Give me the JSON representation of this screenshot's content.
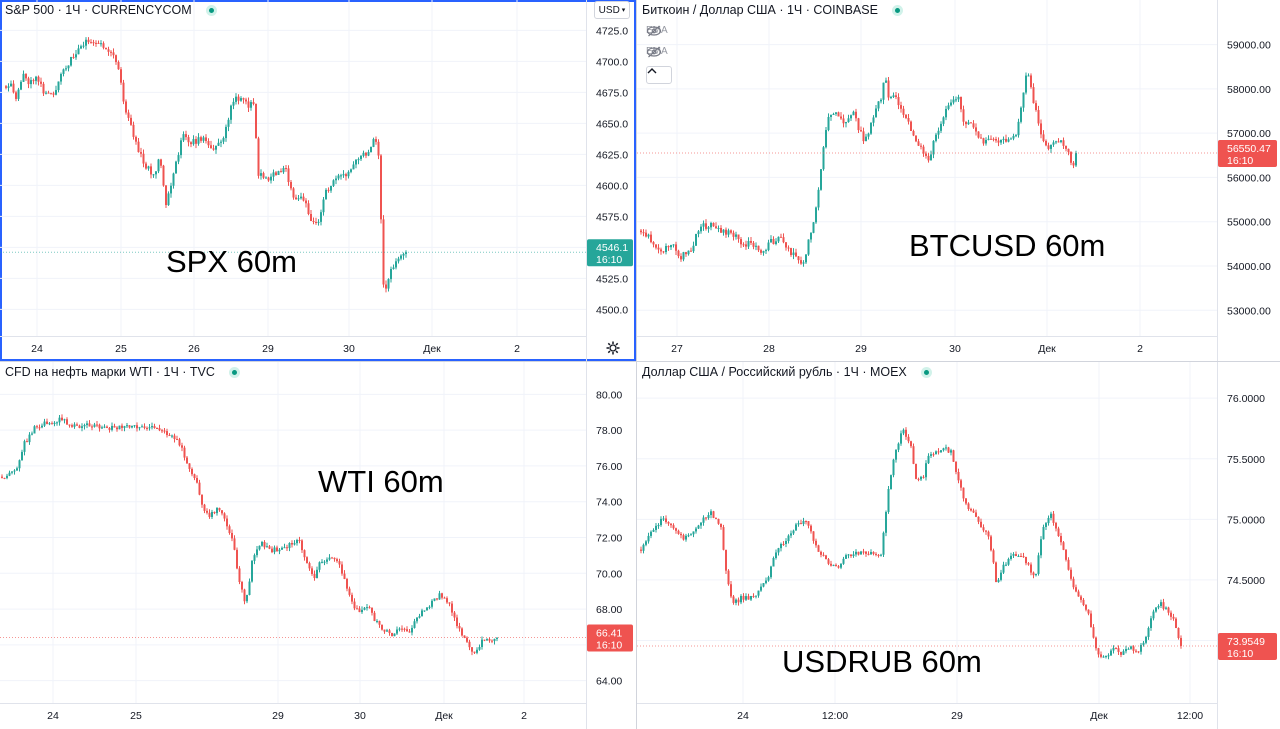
{
  "panes": [
    {
      "id": "spx",
      "header": "S&P 500 · 1Ч · CURRENCYCOM",
      "label": "SPX 60m",
      "currency_button": "USD",
      "price_tag": {
        "value": "4546.1",
        "time": "16:10",
        "color": "#26a69a"
      }
    },
    {
      "id": "btc",
      "header": "Биткоин / Доллар США · 1Ч · COINBASE",
      "label": "BTCUSD 60m",
      "indicators": [
        "EMA",
        "EMA"
      ],
      "price_tag": {
        "value": "56550.47",
        "time": "16:10",
        "color": "#ef5350"
      }
    },
    {
      "id": "wti",
      "header": "CFD на нефть марки WTI · 1Ч · TVC",
      "label": "WTI 60m",
      "price_tag": {
        "value": "66.41",
        "time": "16:10",
        "color": "#ef5350"
      }
    },
    {
      "id": "usdrub",
      "header": "Доллар США / Российский рубль · 1Ч · MOEX",
      "label": "USDRUB 60m",
      "price_tag": {
        "value": "73.9549",
        "time": "16:10",
        "color": "#ef5350"
      }
    }
  ],
  "colors": {
    "up": "#26a69a",
    "down": "#ef5350",
    "grid": "#f0f3fa",
    "axis_text": "#131722",
    "active_border": "#2962ff"
  },
  "icons": [
    "live-status-dot",
    "eye-crossed-icon",
    "chevron-up-icon",
    "gear-icon",
    "dropdown-caret"
  ],
  "chart_data": [
    {
      "type": "candlestick",
      "title": "S&P 500 · 1Ч · CURRENCYCOM",
      "y_ticks": [
        4500,
        4525,
        4550,
        4575,
        4600,
        4625,
        4650,
        4675,
        4700,
        4725
      ],
      "y_tick_labels": [
        "4500.0",
        "4525.0",
        "4550.0",
        "4575.0",
        "4600.0",
        "4625.0",
        "4650.0",
        "4675.0",
        "4700.0",
        "4725.0"
      ],
      "ylim": [
        4485,
        4735
      ],
      "x_ticks": [
        "24",
        "25",
        "26",
        "29",
        "30",
        "Дек",
        "2"
      ],
      "path": [
        [
          0,
          4680
        ],
        [
          6,
          4685
        ],
        [
          9,
          4668
        ],
        [
          18,
          4690
        ],
        [
          24,
          4682
        ],
        [
          30,
          4690
        ],
        [
          38,
          4675
        ],
        [
          48,
          4672
        ],
        [
          54,
          4690
        ],
        [
          64,
          4700
        ],
        [
          73,
          4710
        ],
        [
          84,
          4718
        ],
        [
          92,
          4714
        ],
        [
          100,
          4712
        ],
        [
          108,
          4705
        ],
        [
          114,
          4690
        ],
        [
          118,
          4665
        ],
        [
          124,
          4650
        ],
        [
          132,
          4630
        ],
        [
          140,
          4615
        ],
        [
          148,
          4608
        ],
        [
          154,
          4625
        ],
        [
          160,
          4585
        ],
        [
          168,
          4610
        ],
        [
          176,
          4640
        ],
        [
          186,
          4635
        ],
        [
          198,
          4638
        ],
        [
          208,
          4628
        ],
        [
          218,
          4640
        ],
        [
          224,
          4660
        ],
        [
          230,
          4672
        ],
        [
          242,
          4665
        ],
        [
          248,
          4665
        ],
        [
          252,
          4610
        ],
        [
          260,
          4605
        ],
        [
          270,
          4610
        ],
        [
          280,
          4612
        ],
        [
          288,
          4590
        ],
        [
          298,
          4590
        ],
        [
          304,
          4570
        ],
        [
          312,
          4570
        ],
        [
          320,
          4595
        ],
        [
          330,
          4605
        ],
        [
          340,
          4608
        ],
        [
          348,
          4620
        ],
        [
          356,
          4625
        ],
        [
          364,
          4628
        ],
        [
          368,
          4640
        ],
        [
          372,
          4635
        ],
        [
          376,
          4550
        ],
        [
          378,
          4512
        ],
        [
          384,
          4530
        ],
        [
          392,
          4540
        ],
        [
          400,
          4546.1
        ]
      ],
      "last_value": 4546.1
    },
    {
      "type": "candlestick",
      "title": "Биткоин / Доллар США · 1Ч · COINBASE",
      "y_ticks": [
        53000,
        54000,
        55000,
        56000,
        57000,
        58000,
        59000
      ],
      "y_tick_labels": [
        "53000.00",
        "54000.00",
        "55000.00",
        "56000.00",
        "57000.00",
        "58000.00",
        "59000.00"
      ],
      "ylim": [
        52600,
        59600
      ],
      "x_ticks": [
        "27",
        "28",
        "29",
        "30",
        "Дек",
        "2"
      ],
      "path": [
        [
          0,
          54800
        ],
        [
          10,
          54600
        ],
        [
          20,
          54300
        ],
        [
          30,
          54500
        ],
        [
          40,
          54200
        ],
        [
          50,
          54400
        ],
        [
          60,
          54900
        ],
        [
          72,
          54900
        ],
        [
          80,
          54750
        ],
        [
          90,
          54800
        ],
        [
          100,
          54500
        ],
        [
          110,
          54500
        ],
        [
          120,
          54300
        ],
        [
          130,
          54550
        ],
        [
          140,
          54600
        ],
        [
          148,
          54350
        ],
        [
          156,
          54150
        ],
        [
          162,
          54000
        ],
        [
          168,
          54600
        ],
        [
          174,
          55200
        ],
        [
          180,
          56200
        ],
        [
          186,
          57300
        ],
        [
          192,
          57500
        ],
        [
          198,
          57300
        ],
        [
          205,
          57200
        ],
        [
          212,
          57500
        ],
        [
          218,
          57100
        ],
        [
          224,
          56800
        ],
        [
          230,
          57200
        ],
        [
          236,
          57600
        ],
        [
          240,
          57800
        ],
        [
          244,
          58300
        ],
        [
          248,
          57800
        ],
        [
          254,
          57800
        ],
        [
          260,
          57600
        ],
        [
          266,
          57300
        ],
        [
          272,
          56900
        ],
        [
          280,
          56700
        ],
        [
          288,
          56400
        ],
        [
          294,
          56900
        ],
        [
          300,
          57200
        ],
        [
          306,
          57600
        ],
        [
          312,
          57700
        ],
        [
          318,
          57900
        ],
        [
          322,
          57300
        ],
        [
          330,
          57200
        ],
        [
          336,
          57000
        ],
        [
          344,
          56800
        ],
        [
          352,
          56900
        ],
        [
          360,
          56800
        ],
        [
          368,
          56900
        ],
        [
          376,
          57000
        ],
        [
          382,
          57800
        ],
        [
          386,
          58400
        ],
        [
          392,
          57800
        ],
        [
          398,
          57100
        ],
        [
          404,
          56700
        ],
        [
          410,
          56700
        ],
        [
          416,
          56800
        ],
        [
          420,
          56900
        ],
        [
          426,
          56600
        ],
        [
          432,
          56300
        ],
        [
          436,
          56550.47
        ]
      ],
      "last_value": 56550.47
    },
    {
      "type": "candlestick",
      "title": "CFD на нефть марки WTI · 1Ч · TVC",
      "y_ticks": [
        64,
        66,
        68,
        70,
        72,
        74,
        76,
        78,
        80
      ],
      "y_tick_labels": [
        "64.00",
        "66.00",
        "68.00",
        "70.00",
        "72.00",
        "74.00",
        "76.00",
        "78.00",
        "80.00"
      ],
      "ylim": [
        63.2,
        80.8
      ],
      "x_ticks": [
        "24",
        "25",
        "29",
        "30",
        "Дек",
        "2"
      ],
      "path": [
        [
          0,
          75.4
        ],
        [
          14,
          75.7
        ],
        [
          22,
          77.2
        ],
        [
          34,
          78.2
        ],
        [
          46,
          78.4
        ],
        [
          60,
          78.6
        ],
        [
          70,
          78.2
        ],
        [
          86,
          78.3
        ],
        [
          100,
          78.1
        ],
        [
          120,
          78.2
        ],
        [
          138,
          78.1
        ],
        [
          150,
          78.3
        ],
        [
          160,
          78.0
        ],
        [
          170,
          77.6
        ],
        [
          178,
          77.2
        ],
        [
          186,
          76.0
        ],
        [
          194,
          75.2
        ],
        [
          200,
          73.8
        ],
        [
          208,
          73.2
        ],
        [
          214,
          73.6
        ],
        [
          220,
          73.4
        ],
        [
          226,
          72.6
        ],
        [
          232,
          71.5
        ],
        [
          238,
          69.3
        ],
        [
          244,
          68.3
        ],
        [
          250,
          70.6
        ],
        [
          258,
          71.7
        ],
        [
          268,
          71.3
        ],
        [
          278,
          71.3
        ],
        [
          290,
          71.7
        ],
        [
          296,
          72.0
        ],
        [
          300,
          71.3
        ],
        [
          306,
          70.4
        ],
        [
          312,
          69.6
        ],
        [
          318,
          70.6
        ],
        [
          328,
          70.9
        ],
        [
          336,
          70.7
        ],
        [
          344,
          69.4
        ],
        [
          350,
          68.3
        ],
        [
          358,
          67.8
        ],
        [
          366,
          68.1
        ],
        [
          374,
          67.3
        ],
        [
          382,
          66.8
        ],
        [
          390,
          66.5
        ],
        [
          398,
          67.0
        ],
        [
          406,
          66.6
        ],
        [
          412,
          67.3
        ],
        [
          420,
          67.8
        ],
        [
          430,
          68.4
        ],
        [
          438,
          68.8
        ],
        [
          446,
          68.4
        ],
        [
          452,
          67.5
        ],
        [
          458,
          66.8
        ],
        [
          464,
          66.2
        ],
        [
          472,
          65.6
        ],
        [
          480,
          66.2
        ],
        [
          488,
          66.2
        ],
        [
          496,
          66.41
        ]
      ],
      "last_value": 66.41
    },
    {
      "type": "candlestick",
      "title": "Доллар США / Российский рубль · 1Ч · MOEX",
      "y_ticks": [
        74.0,
        74.5,
        75.0,
        75.5,
        76.0
      ],
      "y_tick_labels": [
        "74.0000",
        "74.5000",
        "75.0000",
        "75.5000",
        "76.0000"
      ],
      "ylim": [
        73.55,
        76.15
      ],
      "x_ticks": [
        "24",
        "12:00",
        "29",
        "Дек",
        "12:00"
      ],
      "path": [
        [
          0,
          74.75
        ],
        [
          10,
          74.9
        ],
        [
          22,
          75.0
        ],
        [
          32,
          74.95
        ],
        [
          42,
          74.85
        ],
        [
          52,
          74.9
        ],
        [
          62,
          75.0
        ],
        [
          70,
          75.05
        ],
        [
          80,
          74.95
        ],
        [
          86,
          74.5
        ],
        [
          92,
          74.3
        ],
        [
          100,
          74.35
        ],
        [
          110,
          74.35
        ],
        [
          118,
          74.4
        ],
        [
          126,
          74.5
        ],
        [
          136,
          74.75
        ],
        [
          146,
          74.85
        ],
        [
          156,
          74.95
        ],
        [
          166,
          75.0
        ],
        [
          176,
          74.75
        ],
        [
          186,
          74.65
        ],
        [
          196,
          74.6
        ],
        [
          206,
          74.7
        ],
        [
          216,
          74.72
        ],
        [
          228,
          74.72
        ],
        [
          240,
          74.7
        ],
        [
          248,
          75.3
        ],
        [
          254,
          75.55
        ],
        [
          262,
          75.75
        ],
        [
          270,
          75.6
        ],
        [
          276,
          75.3
        ],
        [
          282,
          75.35
        ],
        [
          288,
          75.55
        ],
        [
          296,
          75.55
        ],
        [
          304,
          75.6
        ],
        [
          310,
          75.55
        ],
        [
          318,
          75.3
        ],
        [
          326,
          75.1
        ],
        [
          334,
          75.05
        ],
        [
          340,
          74.95
        ],
        [
          348,
          74.85
        ],
        [
          356,
          74.45
        ],
        [
          362,
          74.6
        ],
        [
          370,
          74.7
        ],
        [
          378,
          74.7
        ],
        [
          386,
          74.65
        ],
        [
          394,
          74.5
        ],
        [
          402,
          74.95
        ],
        [
          410,
          75.05
        ],
        [
          416,
          74.9
        ],
        [
          424,
          74.7
        ],
        [
          432,
          74.45
        ],
        [
          440,
          74.35
        ],
        [
          448,
          74.2
        ],
        [
          456,
          73.9
        ],
        [
          464,
          73.85
        ],
        [
          472,
          73.95
        ],
        [
          480,
          73.9
        ],
        [
          488,
          73.95
        ],
        [
          496,
          73.9
        ],
        [
          504,
          74.0
        ],
        [
          512,
          74.25
        ],
        [
          520,
          74.3
        ],
        [
          526,
          74.25
        ],
        [
          534,
          74.15
        ],
        [
          540,
          73.9549
        ]
      ],
      "last_value": 73.9549
    }
  ]
}
